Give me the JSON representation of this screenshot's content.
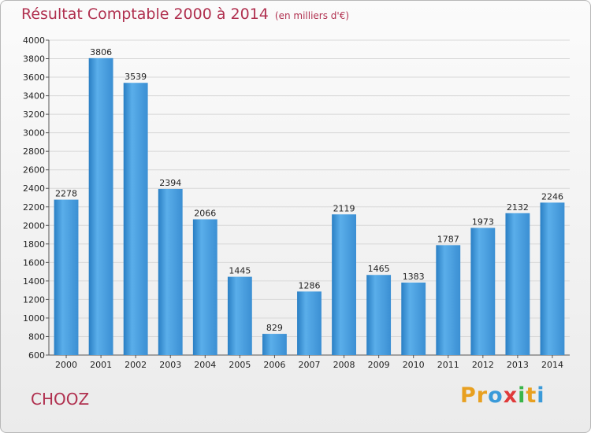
{
  "header": {
    "title": "Résultat Comptable 2000 à 2014",
    "unit": "(en milliers d'€)"
  },
  "commune": "CHOOZ",
  "brand": {
    "letters": [
      "P",
      "r",
      "o",
      "x",
      "i",
      "t",
      "i"
    ],
    "colors": [
      "#e8a020",
      "#e8a020",
      "#3a9ad9",
      "#e03a3a",
      "#3ab54a",
      "#e8a020",
      "#3a9ad9"
    ]
  },
  "colors": {
    "title": "#b0304f",
    "bar": "#4a9fdc",
    "bar_light": "#6fb8ec",
    "bar_dark": "#2a78ba",
    "grid": "#d8d8d8"
  },
  "chart_data": {
    "type": "bar",
    "title": "Résultat Comptable 2000 à 2014",
    "categories": [
      "2000",
      "2001",
      "2002",
      "2003",
      "2004",
      "2005",
      "2006",
      "2007",
      "2008",
      "2009",
      "2010",
      "2011",
      "2012",
      "2013",
      "2014"
    ],
    "values": [
      2278,
      3806,
      3539,
      2394,
      2066,
      1445,
      829,
      1286,
      2119,
      1465,
      1383,
      1787,
      1973,
      2132,
      2246
    ],
    "ylim": [
      600,
      4000
    ],
    "yticks": [
      600,
      800,
      1000,
      1200,
      1400,
      1600,
      1800,
      2000,
      2200,
      2400,
      2600,
      2800,
      3000,
      3200,
      3400,
      3600,
      3800,
      4000
    ],
    "grid": true,
    "legend": "none"
  }
}
